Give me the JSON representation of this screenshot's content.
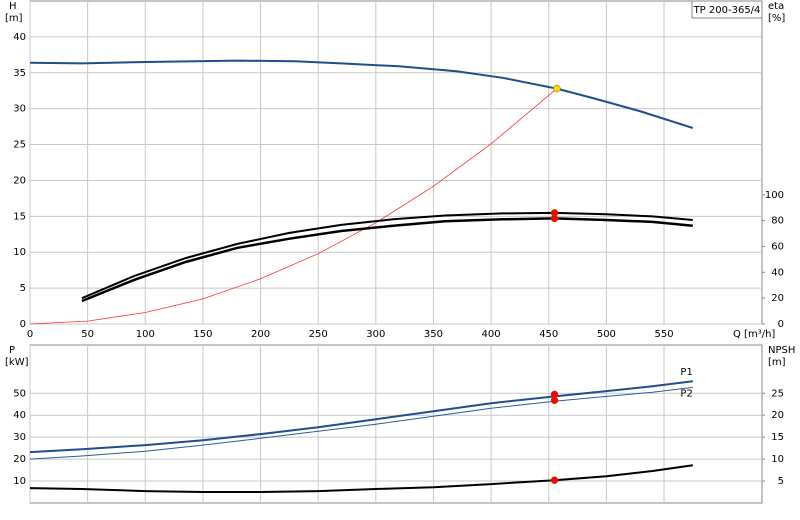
{
  "chart_data": [
    {
      "type": "line",
      "title": "TP 200-365/4",
      "ylabel": "H",
      "yunit": "[m]",
      "y2label": "eta",
      "y2unit": "[%]",
      "xlabel": "Q [m³/h]",
      "xlim": [
        0,
        635
      ],
      "xticks": [
        0,
        50,
        100,
        150,
        200,
        250,
        300,
        350,
        400,
        450,
        500,
        550
      ],
      "ylim": [
        0,
        45
      ],
      "yticks": [
        0,
        5,
        10,
        15,
        20,
        25,
        30,
        35,
        40
      ],
      "y2lim": [
        0,
        250
      ],
      "y2ticks": [
        0,
        20,
        40,
        60,
        80,
        100
      ],
      "grid": true,
      "series": [
        {
          "color": "#1f4e8c",
          "width": 2,
          "axis": "y",
          "x": [
            0,
            45,
            100,
            180,
            230,
            270,
            320,
            370,
            410,
            457,
            490,
            530,
            575
          ],
          "values": [
            36.4,
            36.3,
            36.5,
            36.7,
            36.6,
            36.3,
            35.9,
            35.2,
            34.3,
            32.8,
            31.4,
            29.6,
            27.3
          ]
        },
        {
          "color": "#ff3030",
          "width": 0.8,
          "axis": "y",
          "x": [
            0,
            50,
            100,
            150,
            200,
            250,
            300,
            350,
            400,
            457
          ],
          "values": [
            0,
            0.4,
            1.6,
            3.5,
            6.3,
            9.8,
            14.1,
            19.2,
            25.1,
            32.8
          ]
        },
        {
          "color": "#000000",
          "width": 2,
          "axis": "y2",
          "x": [
            45,
            90,
            135,
            180,
            225,
            270,
            315,
            360,
            410,
            455,
            500,
            540,
            575
          ],
          "values": [
            20,
            37,
            51,
            62,
            70.5,
            76.7,
            81,
            84,
            85.6,
            86,
            85,
            83.3,
            80.5
          ]
        },
        {
          "color": "#000000",
          "width": 2.5,
          "axis": "y2",
          "x": [
            45,
            90,
            135,
            180,
            225,
            270,
            315,
            360,
            410,
            455,
            500,
            540,
            575
          ],
          "values": [
            17.8,
            34,
            48,
            59,
            66,
            72,
            76,
            79.5,
            81,
            81.7,
            80.5,
            79,
            76
          ]
        }
      ],
      "markers": [
        {
          "x": 457,
          "y": 32.8,
          "axis": "y",
          "color": "#ffd700"
        },
        {
          "x": 455,
          "y": 86,
          "axis": "y2",
          "color": "#ff0000"
        },
        {
          "x": 455,
          "y": 81.7,
          "axis": "y2",
          "color": "#ff0000"
        }
      ]
    },
    {
      "type": "line",
      "ylabel": "P",
      "yunit": "[kW]",
      "y2label": "NPSH",
      "y2unit": "[m]",
      "xlim": [
        0,
        635
      ],
      "xticks": [
        0,
        50,
        100,
        150,
        200,
        250,
        300,
        350,
        400,
        450,
        500,
        550
      ],
      "xtick_labels": false,
      "ylim": [
        0,
        72
      ],
      "yticks": [
        10,
        20,
        30,
        40,
        50
      ],
      "y2lim": [
        0,
        36
      ],
      "y2ticks": [
        5,
        10,
        15,
        20,
        25
      ],
      "grid": true,
      "series": [
        {
          "name": "P1",
          "label_pos": "above",
          "color": "#1f4e8c",
          "width": 2,
          "axis": "y",
          "x": [
            0,
            45,
            100,
            150,
            200,
            250,
            300,
            350,
            400,
            455,
            500,
            540,
            575
          ],
          "values": [
            23.2,
            24.5,
            26.4,
            28.6,
            31.4,
            34.5,
            38.2,
            41.8,
            45.5,
            48.6,
            51,
            53.2,
            55.5
          ]
        },
        {
          "name": "P2",
          "label_pos": "below",
          "color": "#2a5d9c",
          "width": 1,
          "axis": "y",
          "x": [
            0,
            45,
            100,
            150,
            200,
            250,
            300,
            350,
            400,
            455,
            500,
            540,
            575
          ],
          "values": [
            20,
            21.4,
            23.6,
            26.4,
            29.5,
            32.7,
            35.9,
            39.5,
            43.2,
            46.4,
            48.6,
            50.5,
            52.7
          ]
        },
        {
          "color": "#000000",
          "width": 2,
          "axis": "y2",
          "x": [
            0,
            45,
            100,
            150,
            200,
            250,
            300,
            350,
            400,
            455,
            500,
            540,
            575
          ],
          "values": [
            3.4,
            3.2,
            2.7,
            2.5,
            2.5,
            2.7,
            3.2,
            3.6,
            4.3,
            5.2,
            6.1,
            7.3,
            8.6
          ]
        }
      ],
      "markers": [
        {
          "x": 455,
          "y": 49.5,
          "axis": "y",
          "color": "#ff0000"
        },
        {
          "x": 455,
          "y": 46.8,
          "axis": "y",
          "color": "#ff0000"
        },
        {
          "x": 455,
          "y": 5.2,
          "axis": "y2",
          "color": "#ff0000"
        }
      ]
    }
  ]
}
